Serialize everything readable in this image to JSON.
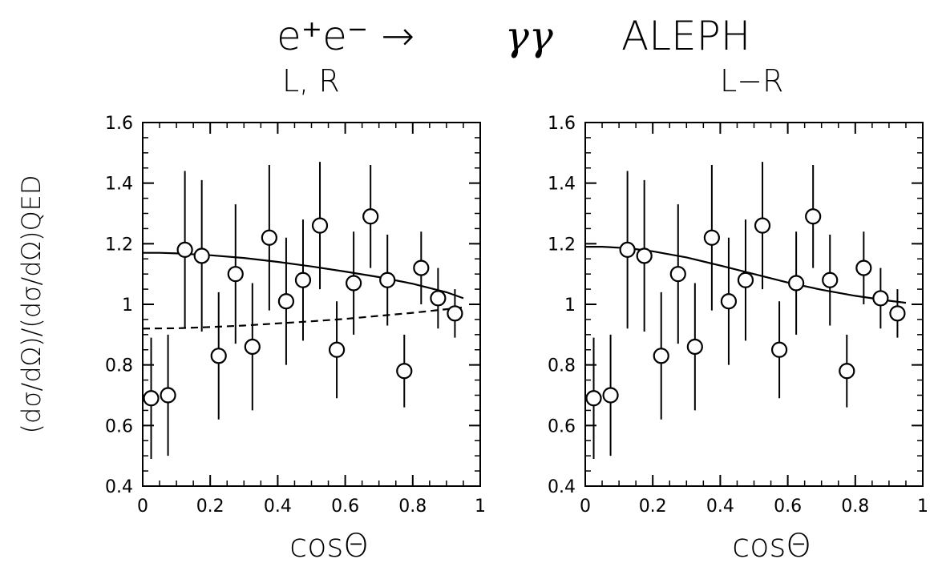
{
  "header": {
    "process": "e⁺e⁻ → ",
    "photons": "γγ",
    "experiment": "ALEPH"
  },
  "y_axis_label": "(dσ/dΩ)/(dσ/dΩ)QED",
  "chart_data": [
    {
      "type": "scatter",
      "panel_label": "L, R",
      "xlabel": "cosΘ",
      "xlim": [
        0,
        1
      ],
      "ylim": [
        0.4,
        1.6
      ],
      "xticks": [
        "0",
        "0.2",
        "0.4",
        "0.6",
        "0.8",
        "1"
      ],
      "yticks": [
        "0.4",
        "0.6",
        "0.8",
        "1",
        "1.2",
        "1.4",
        "1.6"
      ],
      "grid": false,
      "points": [
        {
          "x": 0.025,
          "y": 0.69,
          "err": 0.2
        },
        {
          "x": 0.075,
          "y": 0.7,
          "err": 0.2
        },
        {
          "x": 0.125,
          "y": 1.18,
          "err": 0.26
        },
        {
          "x": 0.175,
          "y": 1.16,
          "err": 0.25
        },
        {
          "x": 0.225,
          "y": 0.83,
          "err": 0.21
        },
        {
          "x": 0.275,
          "y": 1.1,
          "err": 0.23
        },
        {
          "x": 0.325,
          "y": 0.86,
          "err": 0.21
        },
        {
          "x": 0.375,
          "y": 1.22,
          "err": 0.24
        },
        {
          "x": 0.425,
          "y": 1.01,
          "err": 0.21
        },
        {
          "x": 0.475,
          "y": 1.08,
          "err": 0.2
        },
        {
          "x": 0.525,
          "y": 1.26,
          "err": 0.21
        },
        {
          "x": 0.575,
          "y": 0.85,
          "err": 0.16
        },
        {
          "x": 0.625,
          "y": 1.07,
          "err": 0.17
        },
        {
          "x": 0.675,
          "y": 1.29,
          "err": 0.17
        },
        {
          "x": 0.725,
          "y": 1.08,
          "err": 0.15
        },
        {
          "x": 0.775,
          "y": 0.78,
          "err": 0.12
        },
        {
          "x": 0.825,
          "y": 1.12,
          "err": 0.12
        },
        {
          "x": 0.875,
          "y": 1.02,
          "err": 0.1
        },
        {
          "x": 0.925,
          "y": 0.97,
          "err": 0.08
        }
      ],
      "curves": [
        {
          "style": "solid",
          "x": [
            0,
            0.05,
            0.1,
            0.2,
            0.3,
            0.4,
            0.5,
            0.6,
            0.7,
            0.8,
            0.9,
            0.95
          ],
          "y": [
            1.17,
            1.17,
            1.168,
            1.162,
            1.153,
            1.14,
            1.125,
            1.108,
            1.09,
            1.068,
            1.04,
            1.02
          ]
        },
        {
          "style": "dashed",
          "x": [
            0,
            0.1,
            0.2,
            0.3,
            0.4,
            0.5,
            0.6,
            0.7,
            0.8,
            0.9,
            0.95
          ],
          "y": [
            0.92,
            0.921,
            0.925,
            0.93,
            0.937,
            0.944,
            0.952,
            0.962,
            0.972,
            0.984,
            0.99
          ]
        }
      ]
    },
    {
      "type": "scatter",
      "panel_label": "L−R",
      "xlabel": "cosΘ",
      "xlim": [
        0,
        1
      ],
      "ylim": [
        0.4,
        1.6
      ],
      "xticks": [
        "0",
        "0.2",
        "0.4",
        "0.6",
        "0.8",
        "1"
      ],
      "yticks": [
        "0.4",
        "0.6",
        "0.8",
        "1",
        "1.2",
        "1.4",
        "1.6"
      ],
      "grid": false,
      "points": [
        {
          "x": 0.025,
          "y": 0.69,
          "err": 0.2
        },
        {
          "x": 0.075,
          "y": 0.7,
          "err": 0.2
        },
        {
          "x": 0.125,
          "y": 1.18,
          "err": 0.26
        },
        {
          "x": 0.175,
          "y": 1.16,
          "err": 0.25
        },
        {
          "x": 0.225,
          "y": 0.83,
          "err": 0.21
        },
        {
          "x": 0.275,
          "y": 1.1,
          "err": 0.23
        },
        {
          "x": 0.325,
          "y": 0.86,
          "err": 0.21
        },
        {
          "x": 0.375,
          "y": 1.22,
          "err": 0.24
        },
        {
          "x": 0.425,
          "y": 1.01,
          "err": 0.21
        },
        {
          "x": 0.475,
          "y": 1.08,
          "err": 0.2
        },
        {
          "x": 0.525,
          "y": 1.26,
          "err": 0.21
        },
        {
          "x": 0.575,
          "y": 0.85,
          "err": 0.16
        },
        {
          "x": 0.625,
          "y": 1.07,
          "err": 0.17
        },
        {
          "x": 0.675,
          "y": 1.29,
          "err": 0.17
        },
        {
          "x": 0.725,
          "y": 1.08,
          "err": 0.15
        },
        {
          "x": 0.775,
          "y": 0.78,
          "err": 0.12
        },
        {
          "x": 0.825,
          "y": 1.12,
          "err": 0.12
        },
        {
          "x": 0.875,
          "y": 1.02,
          "err": 0.1
        },
        {
          "x": 0.925,
          "y": 0.97,
          "err": 0.08
        }
      ],
      "curves": [
        {
          "style": "solid",
          "x": [
            0,
            0.05,
            0.1,
            0.15,
            0.2,
            0.3,
            0.4,
            0.5,
            0.6,
            0.7,
            0.8,
            0.9,
            0.95
          ],
          "y": [
            1.19,
            1.19,
            1.187,
            1.182,
            1.175,
            1.155,
            1.128,
            1.1,
            1.072,
            1.048,
            1.028,
            1.012,
            1.005
          ]
        }
      ]
    }
  ]
}
